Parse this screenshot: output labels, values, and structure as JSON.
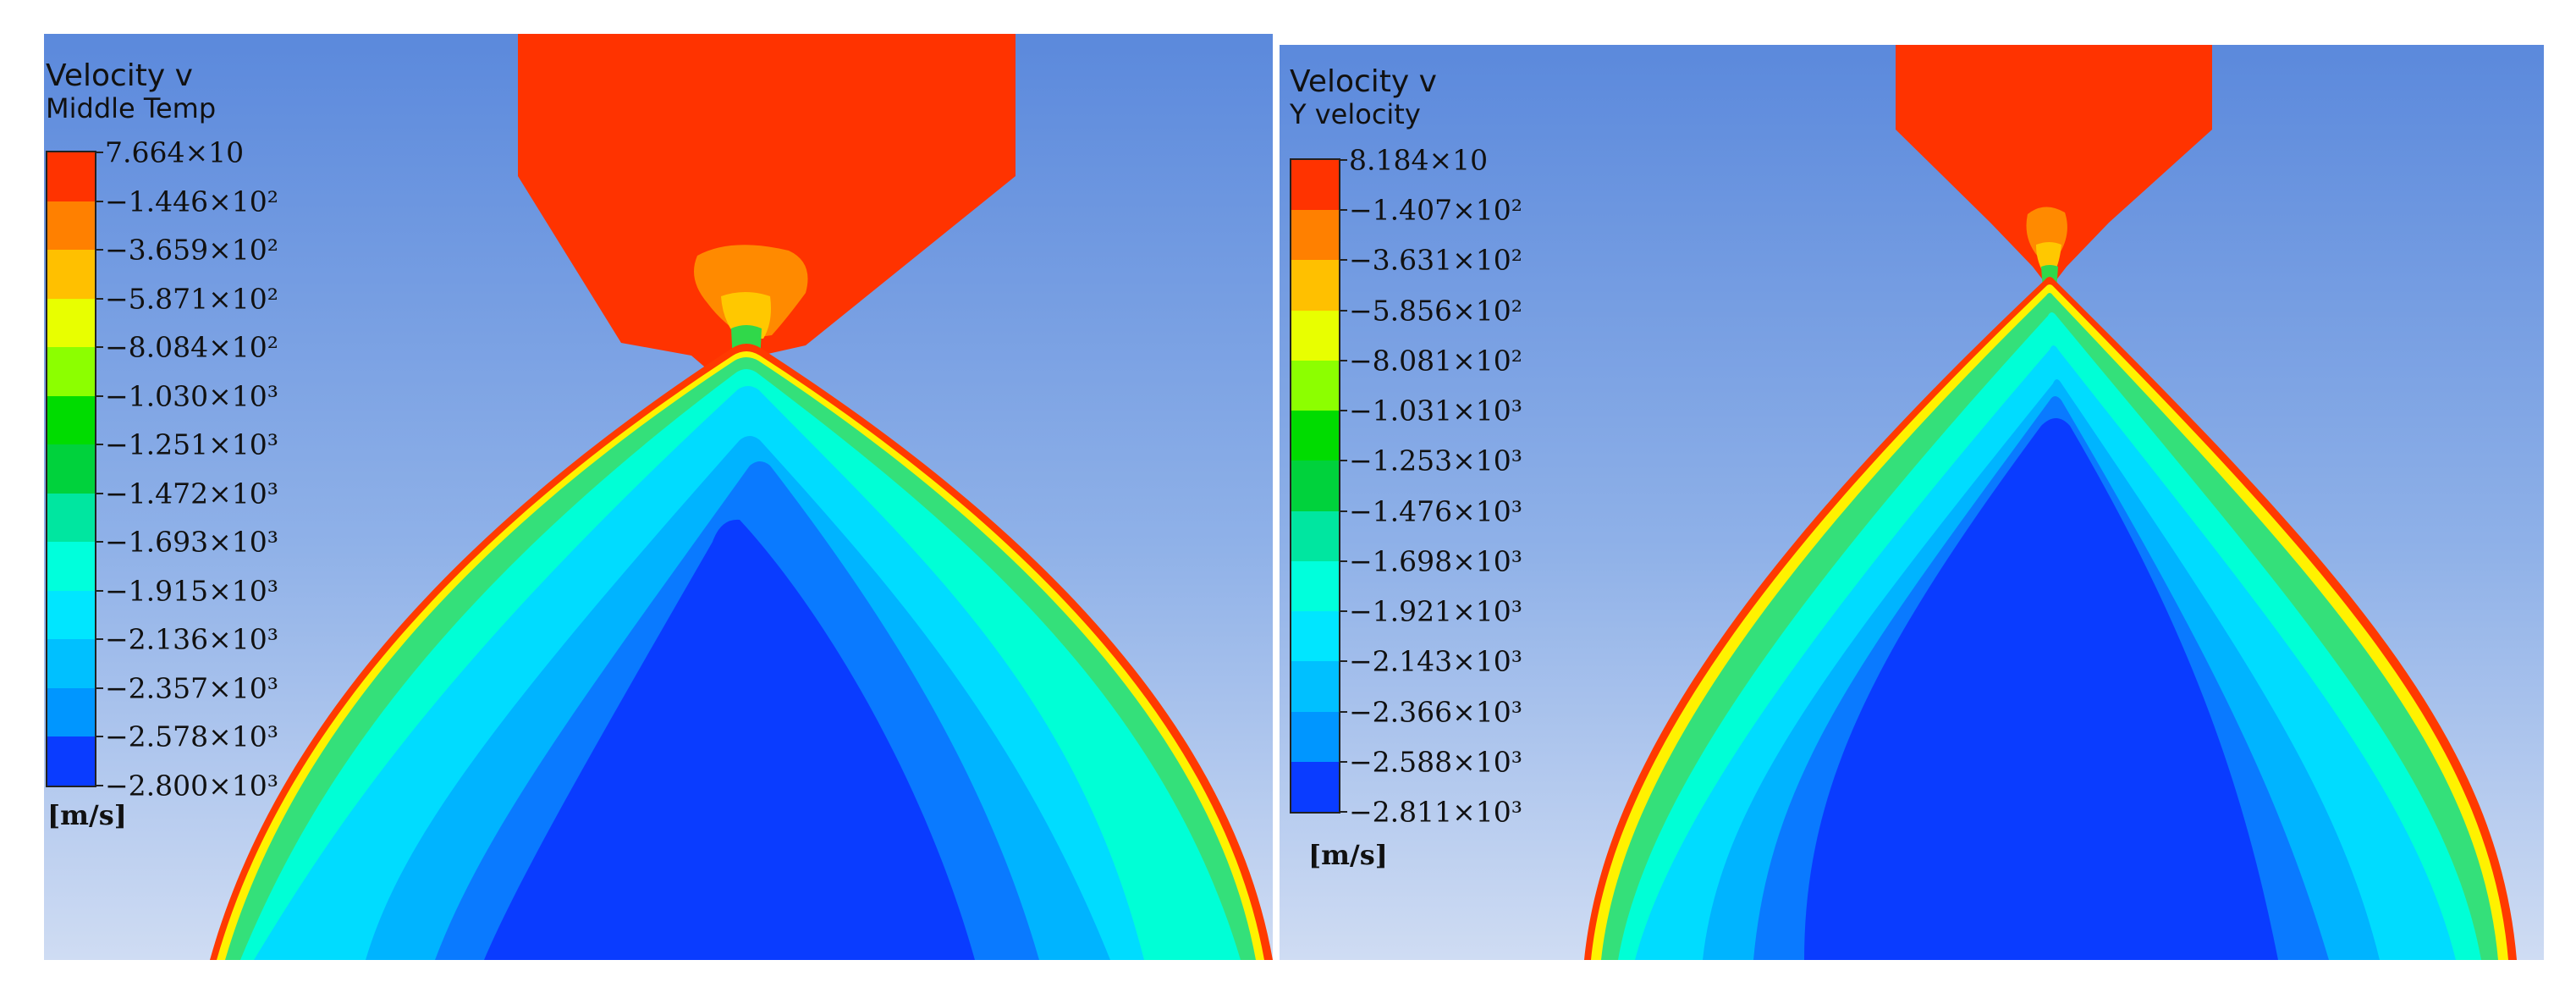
{
  "panels": [
    {
      "title": "Velocity v",
      "subtitle": "Middle Temp",
      "unit": "[m/s]",
      "legend_labels": [
        "7.664×10",
        "−1.446×10²",
        "−3.659×10²",
        "−5.871×10²",
        "−8.084×10²",
        "−1.030×10³",
        "−1.251×10³",
        "−1.472×10³",
        "−1.693×10³",
        "−1.915×10³",
        "−2.136×10³",
        "−2.357×10³",
        "−2.578×10³",
        "−2.800×10³"
      ]
    },
    {
      "title": "Velocity v",
      "subtitle": "Y velocity",
      "unit": "[m/s]",
      "legend_labels": [
        "8.184×10",
        "−1.407×10²",
        "−3.631×10²",
        "−5.856×10²",
        "−8.081×10²",
        "−1.031×10³",
        "−1.253×10³",
        "−1.476×10³",
        "−1.698×10³",
        "−1.921×10³",
        "−2.143×10³",
        "−2.366×10³",
        "−2.588×10³",
        "−2.811×10³"
      ]
    }
  ],
  "colormap": [
    "#ff3300",
    "#ff8000",
    "#ffc000",
    "#e8ff00",
    "#8cff00",
    "#00dc00",
    "#00d23c",
    "#00e6a0",
    "#00ffdc",
    "#00e6ff",
    "#00c0ff",
    "#0096ff",
    "#0a3cff"
  ],
  "region_colors": {
    "nozzle": "#ff3300",
    "throat_outer": "#ff8a00",
    "throat_inner": "#ffc800",
    "throat_green": "#30d84a",
    "shock_edge": "#ff3a00",
    "shock_band": "#fff200",
    "shell_green": "#34e07a",
    "shell_teal": "#00ffd6",
    "shell_cyan": "#00dcff",
    "shell_lightblue": "#00b4ff",
    "shell_blue": "#0a7aff",
    "core": "#0a3cff"
  }
}
